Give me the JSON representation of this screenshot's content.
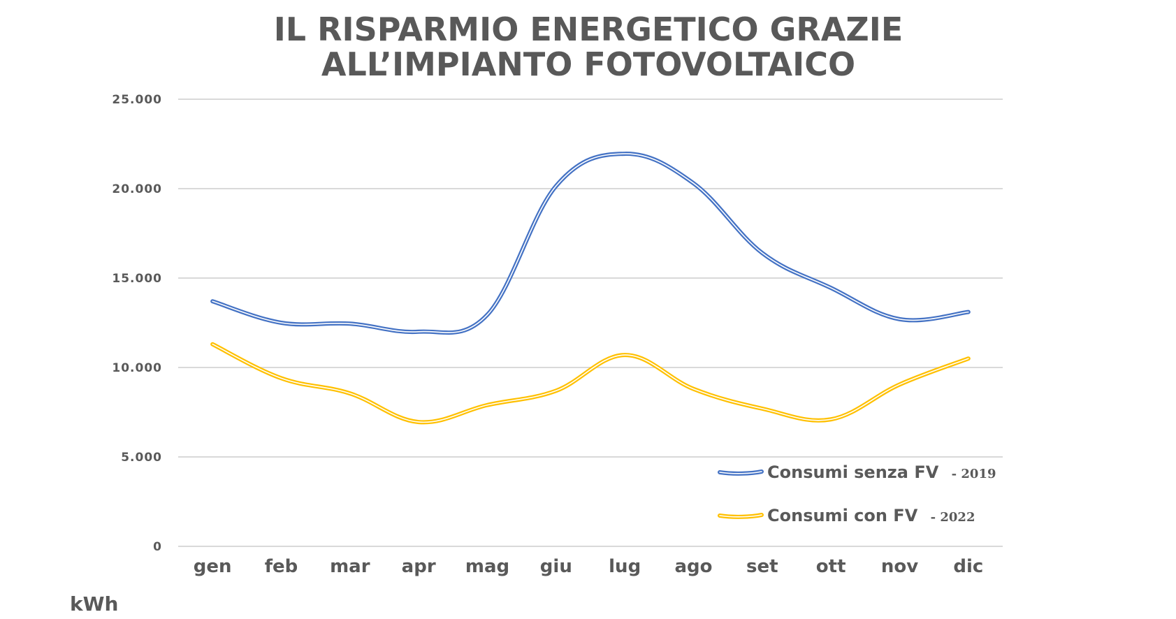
{
  "chart_data": {
    "type": "line",
    "title_lines": [
      "IL RISPARMIO ENERGETICO GRAZIE",
      "ALL’IMPIANTO FOTOVOLTAICO"
    ],
    "unit_label": "kWh",
    "categories": [
      "gen",
      "feb",
      "mar",
      "apr",
      "mag",
      "giu",
      "lug",
      "ago",
      "set",
      "ott",
      "nov",
      "dic"
    ],
    "y_ticks": [
      "0",
      "5.000",
      "10.000",
      "15.000",
      "20.000",
      "25.000"
    ],
    "ylim": [
      0,
      25000
    ],
    "grid": true,
    "legend_position": "bottom-right",
    "series": [
      {
        "name": "Consumi senza FV",
        "name_suffix": "- 2019",
        "color": "#4472c4",
        "values": [
          13700,
          12500,
          12450,
          12000,
          12950,
          20150,
          21950,
          20300,
          16400,
          14450,
          12700,
          13100
        ]
      },
      {
        "name": "Consumi con FV",
        "name_suffix": "- 2022",
        "color": "#ffc000",
        "values": [
          11300,
          9400,
          8550,
          6950,
          7900,
          8700,
          10700,
          8800,
          7700,
          7100,
          9050,
          10500
        ]
      }
    ]
  }
}
